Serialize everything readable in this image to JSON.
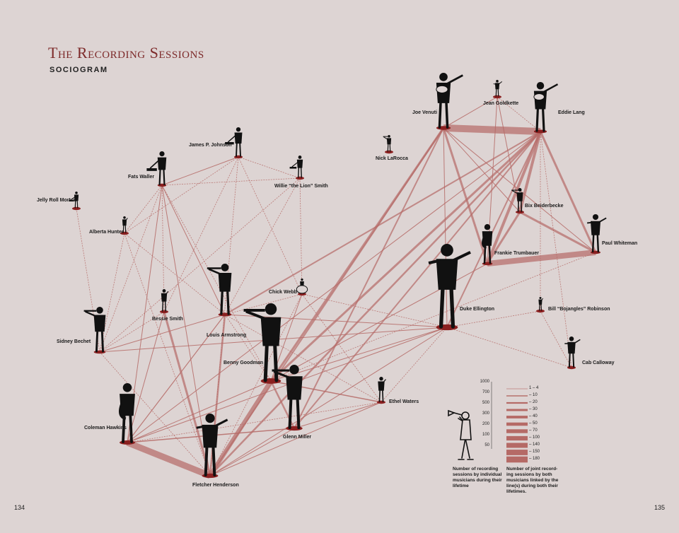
{
  "title": "The Recording Sessions",
  "subtitle": "SOCIOGRAM",
  "pages": {
    "left": "134",
    "right": "135"
  },
  "colors": {
    "background": "#ddd4d3",
    "edge": "#b56a66",
    "node": "#8b2020",
    "figure": "#111111",
    "title": "#7d2a2a"
  },
  "musicians": [
    {
      "id": "venuti",
      "label": "Joe Venuti",
      "icon": "violinist-icon"
    },
    {
      "id": "goldkette",
      "label": "Jean Goldkette",
      "icon": "conductor-icon"
    },
    {
      "id": "lang",
      "label": "Eddie Lang",
      "icon": "guitarist-icon"
    },
    {
      "id": "johnson",
      "label": "James P. Johnson",
      "icon": "pianist-icon"
    },
    {
      "id": "larocca",
      "label": "Nick LaRocca",
      "icon": "cornetist-icon"
    },
    {
      "id": "waller",
      "label": "Fats Waller",
      "icon": "pianist-icon"
    },
    {
      "id": "smith_w",
      "label": "Willie “the Lion” Smith",
      "icon": "pianist-icon"
    },
    {
      "id": "morton",
      "label": "Jelly Roll Morton",
      "icon": "pianist-icon"
    },
    {
      "id": "beiderbecke",
      "label": "Bix Beiderbecke",
      "icon": "cornetist-icon"
    },
    {
      "id": "hunter",
      "label": "Alberta Hunter",
      "icon": "singer-icon"
    },
    {
      "id": "whiteman",
      "label": "Paul Whiteman",
      "icon": "conductor-icon"
    },
    {
      "id": "trumbauer",
      "label": "Frankie Trumbauer",
      "icon": "saxophonist-icon"
    },
    {
      "id": "webb",
      "label": "Chick Webb",
      "icon": "drummer-icon"
    },
    {
      "id": "ellington",
      "label": "Duke Ellington",
      "icon": "conductor-icon"
    },
    {
      "id": "robinson",
      "label": "Bill “Bojangles” Robinson",
      "icon": "dancer-icon"
    },
    {
      "id": "armstrong",
      "label": "Louis Armstrong",
      "icon": "trumpeter-icon"
    },
    {
      "id": "bessie",
      "label": "Bessie Smith",
      "icon": "singer-icon"
    },
    {
      "id": "bechet",
      "label": "Sidney Bechet",
      "icon": "clarinetist-icon"
    },
    {
      "id": "goodman",
      "label": "Benny Goodman",
      "icon": "clarinetist-icon"
    },
    {
      "id": "calloway",
      "label": "Cab Calloway",
      "icon": "conductor-icon"
    },
    {
      "id": "waters",
      "label": "Ethel Waters",
      "icon": "singer-icon"
    },
    {
      "id": "hawkins",
      "label": "Coleman Hawkins",
      "icon": "saxophonist-icon"
    },
    {
      "id": "miller",
      "label": "Glenn Miller",
      "icon": "trombonist-icon"
    },
    {
      "id": "henderson",
      "label": "Fletcher Henderson",
      "icon": "conductor-icon"
    }
  ],
  "connections": [
    {
      "a": "venuti",
      "b": "lang",
      "w": 10
    },
    {
      "a": "trumbauer",
      "b": "whiteman",
      "w": 8
    },
    {
      "a": "hawkins",
      "b": "henderson",
      "w": 9
    },
    {
      "a": "goodman",
      "b": "henderson",
      "w": 6
    },
    {
      "a": "lang",
      "b": "trumbauer",
      "w": 4
    },
    {
      "a": "lang",
      "b": "beiderbecke",
      "w": 4
    },
    {
      "a": "lang",
      "b": "whiteman",
      "w": 3
    },
    {
      "a": "beiderbecke",
      "b": "whiteman",
      "w": 3
    },
    {
      "a": "beiderbecke",
      "b": "trumbauer",
      "w": 3
    },
    {
      "a": "lang",
      "b": "goodman",
      "w": 3
    },
    {
      "a": "venuti",
      "b": "goodman",
      "w": 3
    },
    {
      "a": "venuti",
      "b": "trumbauer",
      "w": 3
    },
    {
      "a": "lang",
      "b": "henderson",
      "w": 2.5
    },
    {
      "a": "venuti",
      "b": "henderson",
      "w": 2
    },
    {
      "a": "lang",
      "b": "miller",
      "w": 2
    },
    {
      "a": "venuti",
      "b": "miller",
      "w": 2
    },
    {
      "a": "lang",
      "b": "ellington",
      "w": 2
    },
    {
      "a": "lang",
      "b": "armstrong",
      "w": 2
    },
    {
      "a": "armstrong",
      "b": "henderson",
      "w": 2.5
    },
    {
      "a": "bessie",
      "b": "henderson",
      "w": 3
    },
    {
      "a": "goodman",
      "b": "miller",
      "w": 2.5
    },
    {
      "a": "goodman",
      "b": "waters",
      "w": 1.5
    },
    {
      "a": "miller",
      "b": "hawkins",
      "w": 1.5
    },
    {
      "a": "miller",
      "b": "waters",
      "w": 1
    },
    {
      "a": "henderson",
      "b": "waters",
      "w": 1
    },
    {
      "a": "hawkins",
      "b": "armstrong",
      "w": 1.2
    },
    {
      "a": "hawkins",
      "b": "waller",
      "w": 1
    },
    {
      "a": "hawkins",
      "b": "ellington",
      "w": 1
    },
    {
      "a": "hawkins",
      "b": "goodman",
      "w": 1
    },
    {
      "a": "hawkins",
      "b": "bessie",
      "w": 1
    },
    {
      "a": "waller",
      "b": "johnson",
      "w": 1
    },
    {
      "a": "waller",
      "b": "smith_w",
      "w": 0.8
    },
    {
      "a": "waller",
      "b": "hunter",
      "w": 0.8
    },
    {
      "a": "waller",
      "b": "armstrong",
      "w": 1
    },
    {
      "a": "waller",
      "b": "henderson",
      "w": 1
    },
    {
      "a": "waller",
      "b": "bechet",
      "w": 0.8
    },
    {
      "a": "waller",
      "b": "bessie",
      "w": 0.8
    },
    {
      "a": "waller",
      "b": "goodman",
      "w": 0.8
    },
    {
      "a": "johnson",
      "b": "smith_w",
      "w": 0.8
    },
    {
      "a": "johnson",
      "b": "webb",
      "w": 0.8
    },
    {
      "a": "johnson",
      "b": "bessie",
      "w": 0.8
    },
    {
      "a": "johnson",
      "b": "hunter",
      "w": 0.8
    },
    {
      "a": "johnson",
      "b": "henderson",
      "w": 0.8
    },
    {
      "a": "smith_w",
      "b": "webb",
      "w": 0.8
    },
    {
      "a": "smith_w",
      "b": "bechet",
      "w": 0.8
    },
    {
      "a": "smith_w",
      "b": "armstrong",
      "w": 0.8
    },
    {
      "a": "morton",
      "b": "bechet",
      "w": 0.8
    },
    {
      "a": "hunter",
      "b": "bechet",
      "w": 0.8
    },
    {
      "a": "hunter",
      "b": "armstrong",
      "w": 0.8
    },
    {
      "a": "hunter",
      "b": "henderson",
      "w": 0.8
    },
    {
      "a": "bechet",
      "b": "armstrong",
      "w": 1
    },
    {
      "a": "bechet",
      "b": "ellington",
      "w": 1
    },
    {
      "a": "bechet",
      "b": "henderson",
      "w": 0.8
    },
    {
      "a": "bechet",
      "b": "bessie",
      "w": 0.8
    },
    {
      "a": "armstrong",
      "b": "ellington",
      "w": 1
    },
    {
      "a": "armstrong",
      "b": "webb",
      "w": 0.8
    },
    {
      "a": "armstrong",
      "b": "waters",
      "w": 0.8
    },
    {
      "a": "armstrong",
      "b": "goodman",
      "w": 0.8
    },
    {
      "a": "webb",
      "b": "goodman",
      "w": 1
    },
    {
      "a": "webb",
      "b": "henderson",
      "w": 0.8
    },
    {
      "a": "webb",
      "b": "waters",
      "w": 0.8
    },
    {
      "a": "webb",
      "b": "ellington",
      "w": 0.8
    },
    {
      "a": "ellington",
      "b": "henderson",
      "w": 1
    },
    {
      "a": "ellington",
      "b": "goodman",
      "w": 1
    },
    {
      "a": "ellington",
      "b": "robinson",
      "w": 0.8
    },
    {
      "a": "ellington",
      "b": "waters",
      "w": 0.8
    },
    {
      "a": "ellington",
      "b": "calloway",
      "w": 0.8
    },
    {
      "a": "robinson",
      "b": "calloway",
      "w": 0.8
    },
    {
      "a": "robinson",
      "b": "lang",
      "w": 0.8
    },
    {
      "a": "venuti",
      "b": "goldkette",
      "w": 1
    },
    {
      "a": "venuti",
      "b": "beiderbecke",
      "w": 1
    },
    {
      "a": "venuti",
      "b": "whiteman",
      "w": 1
    },
    {
      "a": "venuti",
      "b": "ellington",
      "w": 1
    },
    {
      "a": "goldkette",
      "b": "beiderbecke",
      "w": 1
    },
    {
      "a": "goldkette",
      "b": "trumbauer",
      "w": 1
    },
    {
      "a": "goldkette",
      "b": "lang",
      "w": 0.8
    },
    {
      "a": "lang",
      "b": "hawkins",
      "w": 1
    },
    {
      "a": "lang",
      "b": "calloway",
      "w": 0.8
    },
    {
      "a": "trumbauer",
      "b": "goodman",
      "w": 1
    },
    {
      "a": "whiteman",
      "b": "goodman",
      "w": 0.8
    },
    {
      "a": "henderson",
      "b": "miller",
      "w": 1
    },
    {
      "a": "hawkins",
      "b": "waters",
      "w": 0.8
    }
  ],
  "legend": {
    "left_scale": [
      "1000",
      "700",
      "500",
      "300",
      "200",
      "100",
      "50"
    ],
    "right_scale": [
      "1 – 4",
      "– 10",
      "– 20",
      "– 30",
      "– 40",
      "– 50",
      "– 70",
      "– 100",
      "– 140",
      "– 150",
      "– 180"
    ],
    "left_caption": "Number of recording sessions by individual musicians during their lifetime",
    "right_caption": "Number of joint record-ing sessions by both musicians linked by the line(s) during both their lifetimes."
  }
}
